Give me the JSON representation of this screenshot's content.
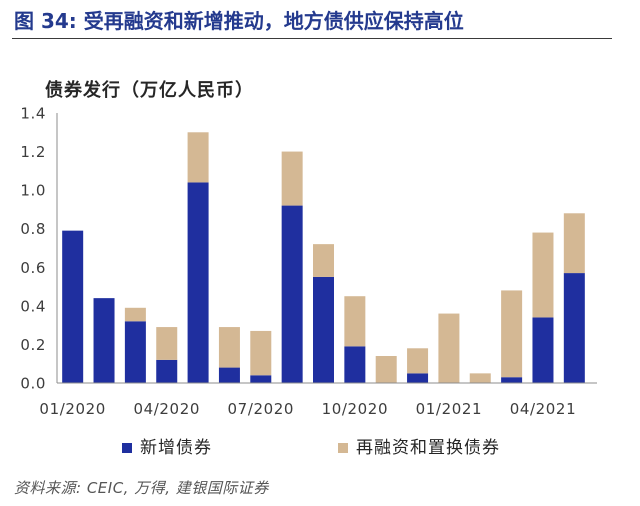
{
  "source": "资料来源: CEIC, 万得, 建银国际证券",
  "chart_data": {
    "type": "bar",
    "stacked": true,
    "title": "图 34: 受再融资和新增推动，地方债供应保持高位",
    "ylabel": "债券发行（万亿人民币）",
    "ylim": [
      0,
      1.4
    ],
    "y_tick_labels": [
      "0.0",
      "0.2",
      "0.4",
      "0.6",
      "0.8",
      "1.0",
      "1.2",
      "1.4"
    ],
    "x": [
      "01/2020",
      "02/2020",
      "03/2020",
      "04/2020",
      "05/2020",
      "06/2020",
      "07/2020",
      "08/2020",
      "09/2020",
      "10/2020",
      "11/2020",
      "12/2020",
      "01/2021",
      "02/2021",
      "03/2021",
      "04/2021",
      "05/2021"
    ],
    "x_ticks": [
      "01/2020",
      "04/2020",
      "07/2020",
      "10/2020",
      "01/2021",
      "04/2021"
    ],
    "grid": false,
    "legend": "bottom",
    "series": [
      {
        "name": "新增债券",
        "color": "#1f2f9f",
        "values": [
          0.79,
          0.44,
          0.32,
          0.12,
          1.04,
          0.08,
          0.04,
          0.92,
          0.55,
          0.19,
          0.0,
          0.05,
          0.0,
          0.0,
          0.03,
          0.34,
          0.57
        ]
      },
      {
        "name": "再融资和置换债券",
        "color": "#d4b894",
        "values": [
          0.0,
          0.0,
          0.07,
          0.17,
          0.26,
          0.21,
          0.23,
          0.28,
          0.17,
          0.26,
          0.14,
          0.13,
          0.36,
          0.05,
          0.45,
          0.44,
          0.31
        ]
      }
    ]
  }
}
